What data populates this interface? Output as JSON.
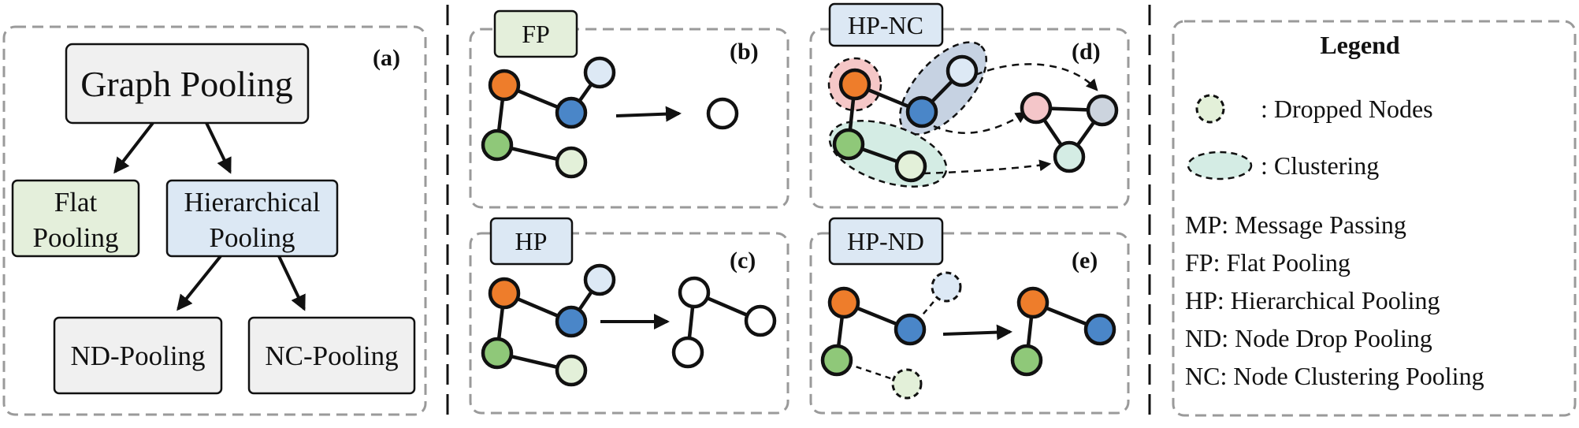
{
  "colors": {
    "orange": "#ee7d2b",
    "blue": "#4a86c8",
    "green": "#8fc879",
    "light_green": "#e3f0d9",
    "light_blue": "#dde9f5",
    "pink": "#f4c6c9",
    "gray_node": "#ccd4de",
    "gray_box": "#f0f0f0",
    "box_green": "#e4efdb",
    "box_blue": "#dce8f4",
    "hull_red": "#f5c7c7",
    "hull_blue": "#c6d2e2",
    "hull_green": "#d4ece4"
  },
  "panel_a": {
    "label": "(a)",
    "root": "Graph Pooling",
    "flat": [
      "Flat",
      "Pooling"
    ],
    "hierarchical": [
      "Hierarchical",
      "Pooling"
    ],
    "nd": "ND-Pooling",
    "nc": "NC-Pooling"
  },
  "panel_b": {
    "label": "(b)",
    "tag": "FP"
  },
  "panel_c": {
    "label": "(c)",
    "tag": "HP"
  },
  "panel_d": {
    "label": "(d)",
    "tag": "HP-NC"
  },
  "panel_e": {
    "label": "(e)",
    "tag": "HP-ND"
  },
  "legend": {
    "title": "Legend",
    "dropped": ": Dropped Nodes",
    "clustering": ": Clustering",
    "abbreviations": [
      "MP: Message Passing",
      "FP: Flat Pooling",
      "HP: Hierarchical Pooling",
      "ND: Node Drop Pooling",
      "NC: Node Clustering Pooling"
    ]
  }
}
